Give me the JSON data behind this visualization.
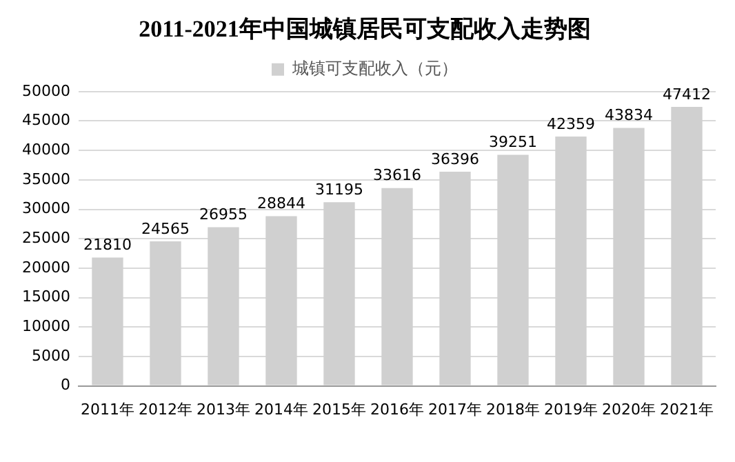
{
  "chart_data": {
    "type": "bar",
    "title": "2011-2021年中国城镇居民可支配收入走势图",
    "categories": [
      "2011年",
      "2012年",
      "2013年",
      "2014年",
      "2015年",
      "2016年",
      "2017年",
      "2018年",
      "2019年",
      "2020年",
      "2021年"
    ],
    "series": [
      {
        "name": "城镇可支配收入（元）",
        "color": "#d0d0d0",
        "values": [
          21810,
          24565,
          26955,
          28844,
          31195,
          33616,
          36396,
          39251,
          42359,
          43834,
          47412
        ]
      }
    ],
    "ylim": [
      0,
      50000
    ],
    "yticks": [
      0,
      5000,
      10000,
      15000,
      20000,
      25000,
      30000,
      35000,
      40000,
      45000,
      50000
    ],
    "grid": "y",
    "legend": "top",
    "data_labels": true
  }
}
